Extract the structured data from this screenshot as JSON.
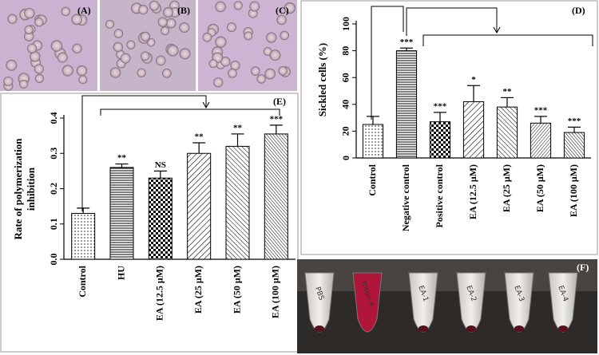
{
  "panels": {
    "A": "(A)",
    "B": "(B)",
    "C": "(C)",
    "D": "(D)",
    "E": "(E)",
    "F": "(F)",
    "tubes": [
      "PBS",
      "Triton X",
      "EA-1",
      "EA-2",
      "EA-3",
      "EA-4"
    ]
  },
  "chart_data": [
    {
      "type": "bar",
      "y_label": "Rate of polymerization inhibition",
      "categories": [
        "Control",
        "HU",
        "EA (12.5 μM)",
        "EA (25 μM)",
        "EA (50 μM)",
        "EA (100 μM)"
      ],
      "values": [
        0.13,
        0.26,
        0.23,
        0.3,
        0.32,
        0.355
      ],
      "errors": [
        0.015,
        0.01,
        0.02,
        0.03,
        0.035,
        0.025
      ],
      "significance": [
        null,
        "**",
        "NS",
        "**",
        "**",
        "***"
      ],
      "ylim": [
        0,
        0.4
      ],
      "yticks": [
        {
          "value": 0,
          "label": "0.0"
        },
        0.1,
        0.2,
        0.3,
        0.4
      ]
    },
    {
      "type": "bar",
      "y_label": "Sickled cells (%)",
      "categories": [
        "Control",
        "Negative control",
        "Positive control",
        "EA (12.5 μM)",
        "EA (25 μM)",
        "EA (50 μM)",
        "EA (100 μM)"
      ],
      "values": [
        25,
        80,
        27,
        42,
        38,
        26,
        19
      ],
      "errors": [
        6,
        2,
        7,
        12,
        7,
        5,
        4
      ],
      "significance": [
        null,
        "***",
        "***",
        "*",
        "**",
        "***",
        "***"
      ],
      "ylim": [
        0,
        100
      ],
      "yticks": [
        0,
        20,
        40,
        60,
        80,
        100
      ]
    }
  ]
}
